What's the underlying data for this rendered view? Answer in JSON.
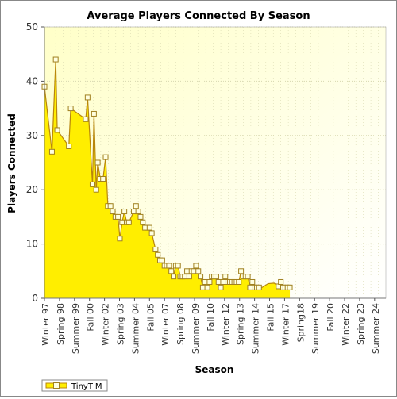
{
  "chart_data": {
    "type": "area",
    "title": "Average Players Connected By Season",
    "xlabel": "Season",
    "ylabel": "Players Connected",
    "ylim": [
      0,
      50
    ],
    "yticks": [
      0,
      10,
      20,
      30,
      40,
      50
    ],
    "grid": true,
    "legend_position": "bottom-left",
    "colors": {
      "fill": "#FFEE00",
      "line": "#B8860B",
      "marker_fill": "#FFFFE0",
      "marker_edge": "#A08020",
      "plot_bg": "#FFFFE8",
      "grid": "#D8D8B0"
    },
    "tick_labels": [
      {
        "index": 0,
        "label": "Winter 97"
      },
      {
        "index": 4,
        "label": "Spring 98"
      },
      {
        "index": 8,
        "label": "Summer 99"
      },
      {
        "index": 12,
        "label": "Fall 00"
      },
      {
        "index": 16,
        "label": "Winter 02"
      },
      {
        "index": 20,
        "label": "Spring 03"
      },
      {
        "index": 24,
        "label": "Summer 04"
      },
      {
        "index": 28,
        "label": "Fall 05"
      },
      {
        "index": 32,
        "label": "Winter 07"
      },
      {
        "index": 36,
        "label": "Spring 08"
      },
      {
        "index": 40,
        "label": "Summer 09"
      },
      {
        "index": 44,
        "label": "Fall 10"
      },
      {
        "index": 48,
        "label": "Winter 12"
      },
      {
        "index": 52,
        "label": "Spring 13"
      },
      {
        "index": 56,
        "label": "Summer 14"
      },
      {
        "index": 60,
        "label": "Fall 15"
      },
      {
        "index": 64,
        "label": "Winter 17"
      },
      {
        "index": 68,
        "label": "Spring18"
      },
      {
        "index": 72,
        "label": "Summer 19"
      },
      {
        "index": 76,
        "label": "Fall 20"
      },
      {
        "index": 80,
        "label": "Winter 22"
      },
      {
        "index": 84,
        "label": "Spring 23"
      },
      {
        "index": 88,
        "label": "Summer 24"
      }
    ],
    "series": [
      {
        "name": "TinyTIM",
        "values": [
          {
            "i": 0,
            "y": 39,
            "m": true
          },
          {
            "i": 2,
            "y": 27,
            "m": true
          },
          {
            "i": 3,
            "y": 44,
            "m": true
          },
          {
            "i": 3.4,
            "y": 31,
            "m": true
          },
          {
            "i": 6.5,
            "y": 28,
            "m": true
          },
          {
            "i": 7,
            "y": 35,
            "m": true
          },
          {
            "i": 11,
            "y": 33,
            "m": true
          },
          {
            "i": 11.5,
            "y": 37,
            "m": true
          },
          {
            "i": 12.8,
            "y": 21,
            "m": true
          },
          {
            "i": 13.2,
            "y": 34,
            "m": true
          },
          {
            "i": 13.8,
            "y": 20,
            "m": true
          },
          {
            "i": 14.2,
            "y": 25,
            "m": true
          },
          {
            "i": 14.9,
            "y": 22,
            "m": true
          },
          {
            "i": 15.6,
            "y": 22,
            "m": true
          },
          {
            "i": 16.3,
            "y": 26,
            "m": true
          },
          {
            "i": 16.9,
            "y": 17,
            "m": true
          },
          {
            "i": 17.6,
            "y": 17,
            "m": true
          },
          {
            "i": 18.2,
            "y": 16,
            "m": true
          },
          {
            "i": 18.9,
            "y": 15,
            "m": true
          },
          {
            "i": 19.6,
            "y": 15,
            "m": true
          },
          {
            "i": 20.1,
            "y": 11,
            "m": true
          },
          {
            "i": 20.7,
            "y": 14,
            "m": true
          },
          {
            "i": 21.3,
            "y": 16,
            "m": true
          },
          {
            "i": 21.9,
            "y": 14,
            "m": true
          },
          {
            "i": 22.5,
            "y": 14,
            "m": true
          },
          {
            "i": 23.8,
            "y": 16,
            "m": true
          },
          {
            "i": 24.4,
            "y": 17,
            "m": true
          },
          {
            "i": 25.0,
            "y": 16,
            "m": true
          },
          {
            "i": 25.6,
            "y": 15,
            "m": true
          },
          {
            "i": 26.2,
            "y": 14,
            "m": true
          },
          {
            "i": 26.8,
            "y": 13,
            "m": true
          },
          {
            "i": 27.4,
            "y": 13,
            "m": true
          },
          {
            "i": 28.0,
            "y": 13,
            "m": true
          },
          {
            "i": 28.6,
            "y": 12,
            "m": true
          },
          {
            "i": 29.6,
            "y": 9,
            "m": true
          },
          {
            "i": 30.2,
            "y": 8,
            "m": true
          },
          {
            "i": 30.8,
            "y": 7,
            "m": true
          },
          {
            "i": 31.4,
            "y": 7,
            "m": true
          },
          {
            "i": 32.0,
            "y": 6,
            "m": true
          },
          {
            "i": 32.6,
            "y": 6,
            "m": true
          },
          {
            "i": 33.2,
            "y": 6,
            "m": true
          },
          {
            "i": 33.8,
            "y": 5,
            "m": true
          },
          {
            "i": 34.4,
            "y": 4,
            "m": true
          },
          {
            "i": 35.0,
            "y": 6,
            "m": true
          },
          {
            "i": 35.6,
            "y": 6,
            "m": true
          },
          {
            "i": 36.2,
            "y": 4,
            "m": true
          },
          {
            "i": 36.8,
            "y": 4,
            "m": true
          },
          {
            "i": 37.4,
            "y": 4,
            "m": true
          },
          {
            "i": 38.0,
            "y": 5,
            "m": true
          },
          {
            "i": 38.6,
            "y": 4,
            "m": true
          },
          {
            "i": 39.2,
            "y": 5,
            "m": true
          },
          {
            "i": 39.8,
            "y": 5,
            "m": true
          },
          {
            "i": 40.4,
            "y": 6,
            "m": true
          },
          {
            "i": 41.0,
            "y": 5,
            "m": true
          },
          {
            "i": 41.6,
            "y": 4,
            "m": true
          },
          {
            "i": 42.2,
            "y": 2,
            "m": true
          },
          {
            "i": 42.8,
            "y": 3,
            "m": true
          },
          {
            "i": 43.4,
            "y": 2,
            "m": true
          },
          {
            "i": 44.0,
            "y": 3,
            "m": true
          },
          {
            "i": 44.6,
            "y": 4,
            "m": true
          },
          {
            "i": 45.2,
            "y": 4,
            "m": true
          },
          {
            "i": 45.8,
            "y": 4,
            "m": true
          },
          {
            "i": 46.4,
            "y": 3,
            "m": true
          },
          {
            "i": 47.0,
            "y": 2,
            "m": true
          },
          {
            "i": 47.6,
            "y": 3,
            "m": true
          },
          {
            "i": 48.2,
            "y": 4,
            "m": true
          },
          {
            "i": 48.8,
            "y": 3,
            "m": true
          },
          {
            "i": 49.4,
            "y": 3,
            "m": true
          },
          {
            "i": 50.0,
            "y": 3,
            "m": true
          },
          {
            "i": 50.6,
            "y": 3,
            "m": true
          },
          {
            "i": 51.2,
            "y": 3,
            "m": true
          },
          {
            "i": 51.8,
            "y": 3,
            "m": true
          },
          {
            "i": 52.4,
            "y": 5,
            "m": true
          },
          {
            "i": 53.0,
            "y": 4,
            "m": true
          },
          {
            "i": 53.6,
            "y": 4,
            "m": true
          },
          {
            "i": 54.2,
            "y": 4,
            "m": true
          },
          {
            "i": 54.8,
            "y": 2,
            "m": true
          },
          {
            "i": 55.4,
            "y": 3,
            "m": true
          },
          {
            "i": 56.0,
            "y": 2,
            "m": true
          },
          {
            "i": 56.6,
            "y": 2,
            "m": true
          },
          {
            "i": 57.2,
            "y": 2,
            "m": true
          },
          {
            "i": 58.0,
            "y": 2,
            "m": false
          },
          {
            "i": 59.6,
            "y": 2.7,
            "m": false
          },
          {
            "i": 61.2,
            "y": 2.8,
            "m": false
          },
          {
            "i": 62.4,
            "y": 2.2,
            "m": true
          },
          {
            "i": 63.0,
            "y": 3,
            "m": true
          },
          {
            "i": 63.6,
            "y": 2,
            "m": true
          },
          {
            "i": 64.2,
            "y": 2,
            "m": true
          },
          {
            "i": 64.8,
            "y": 2,
            "m": true
          },
          {
            "i": 65.4,
            "y": 2,
            "m": true
          }
        ]
      }
    ]
  }
}
